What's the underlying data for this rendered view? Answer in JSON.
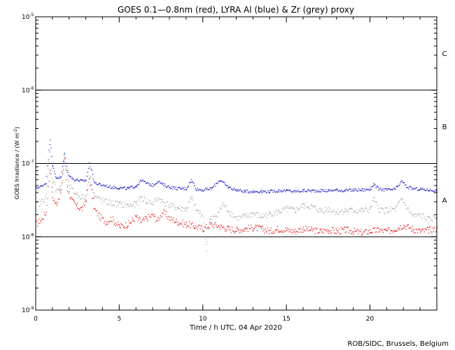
{
  "chart_data": {
    "type": "scatter",
    "title": "GOES 0.1—0.8nm (red), LYRA Al (blue) & Zr (grey) proxy",
    "xlabel": "Time / h UTC, 04 Apr 2020",
    "ylabel_main": "GOES Irradiance / (W m",
    "ylabel_exp": "-2",
    "ylabel_close": ")",
    "credit": "ROB/SIDC, Brussels, Belgium",
    "xlim": [
      0,
      24
    ],
    "ylim": [
      1e-09,
      1e-05
    ],
    "yscale": "log",
    "x_ticks": [
      {
        "value": 0,
        "label": "0"
      },
      {
        "value": 5,
        "label": "5"
      },
      {
        "value": 10,
        "label": "10"
      },
      {
        "value": 15,
        "label": "15"
      },
      {
        "value": 20,
        "label": "20"
      }
    ],
    "y_ticks": [
      {
        "value": 1e-09,
        "base": "10",
        "exp": "-9"
      },
      {
        "value": 1e-08,
        "base": "10",
        "exp": "-8"
      },
      {
        "value": 1e-07,
        "base": "10",
        "exp": "-7"
      },
      {
        "value": 1e-06,
        "base": "10",
        "exp": "-6"
      },
      {
        "value": 1e-05,
        "base": "10",
        "exp": "-5"
      }
    ],
    "class_lines": [
      1e-08,
      1e-07,
      1e-06
    ],
    "class_labels": [
      {
        "label": "A",
        "value": 3.2e-08
      },
      {
        "label": "B",
        "value": 3.2e-07
      },
      {
        "label": "C",
        "value": 3.2e-06
      }
    ],
    "series": [
      {
        "name": "GOES 0.1—0.8nm",
        "color": "#e00000",
        "points": [
          [
            0.0,
            1.5e-08
          ],
          [
            0.3,
            1.7e-08
          ],
          [
            0.6,
            2.2e-08
          ],
          [
            0.85,
            9e-08
          ],
          [
            1.0,
            3.5e-08
          ],
          [
            1.2,
            2.8e-08
          ],
          [
            1.5,
            4.3e-08
          ],
          [
            1.7,
            1.2e-07
          ],
          [
            1.9,
            4.5e-08
          ],
          [
            2.2,
            3e-08
          ],
          [
            2.5,
            2.6e-08
          ],
          [
            2.8,
            2.4e-08
          ],
          [
            3.0,
            3.4e-08
          ],
          [
            3.2,
            6.5e-08
          ],
          [
            3.5,
            2.4e-08
          ],
          [
            3.8,
            1.9e-08
          ],
          [
            4.2,
            1.6e-08
          ],
          [
            4.5,
            1.8e-08
          ],
          [
            5.0,
            1.4e-08
          ],
          [
            5.5,
            1.5e-08
          ],
          [
            5.8,
            1.7e-08
          ],
          [
            6.0,
            1.9e-08
          ],
          [
            6.3,
            1.6e-08
          ],
          [
            6.6,
            1.8e-08
          ],
          [
            7.0,
            2e-08
          ],
          [
            7.3,
            1.7e-08
          ],
          [
            7.6,
            2.2e-08
          ],
          [
            8.0,
            1.8e-08
          ],
          [
            8.5,
            1.6e-08
          ],
          [
            9.0,
            1.5e-08
          ],
          [
            9.5,
            1.4e-08
          ],
          [
            10.0,
            1.3e-08
          ],
          [
            10.5,
            1.5e-08
          ],
          [
            11.0,
            1.4e-08
          ],
          [
            11.5,
            1.3e-08
          ],
          [
            12.0,
            1.25e-08
          ],
          [
            12.5,
            1.3e-08
          ],
          [
            13.0,
            1.35e-08
          ],
          [
            13.5,
            1.3e-08
          ],
          [
            14.0,
            1.2e-08
          ],
          [
            14.5,
            1.3e-08
          ],
          [
            15.0,
            1.25e-08
          ],
          [
            15.5,
            1.2e-08
          ],
          [
            16.0,
            1.3e-08
          ],
          [
            16.5,
            1.25e-08
          ],
          [
            17.0,
            1.2e-08
          ],
          [
            17.5,
            1.25e-08
          ],
          [
            18.0,
            1.2e-08
          ],
          [
            18.5,
            1.25e-08
          ],
          [
            19.0,
            1.2e-08
          ],
          [
            19.5,
            1.15e-08
          ],
          [
            20.0,
            1.2e-08
          ],
          [
            20.5,
            1.25e-08
          ],
          [
            21.0,
            1.2e-08
          ],
          [
            21.5,
            1.3e-08
          ],
          [
            22.0,
            1.45e-08
          ],
          [
            22.5,
            1.3e-08
          ],
          [
            23.0,
            1.2e-08
          ],
          [
            23.5,
            1.25e-08
          ],
          [
            24.0,
            1.3e-08
          ]
        ]
      },
      {
        "name": "LYRA Al",
        "color": "#0000c8",
        "points": [
          [
            0.0,
            4.7e-08
          ],
          [
            0.3,
            4.9e-08
          ],
          [
            0.6,
            5.5e-08
          ],
          [
            0.85,
            2.2e-07
          ],
          [
            1.0,
            9e-08
          ],
          [
            1.2,
            6.5e-08
          ],
          [
            1.5,
            6.5e-08
          ],
          [
            1.7,
            1.4e-07
          ],
          [
            1.9,
            7.5e-08
          ],
          [
            2.2,
            6.2e-08
          ],
          [
            2.5,
            6e-08
          ],
          [
            2.8,
            5.8e-08
          ],
          [
            3.0,
            6e-08
          ],
          [
            3.2,
            1.05e-07
          ],
          [
            3.5,
            5.5e-08
          ],
          [
            3.8,
            5.2e-08
          ],
          [
            4.2,
            5e-08
          ],
          [
            4.5,
            4.8e-08
          ],
          [
            5.0,
            4.7e-08
          ],
          [
            5.5,
            4.6e-08
          ],
          [
            6.0,
            5e-08
          ],
          [
            6.3,
            6e-08
          ],
          [
            6.6,
            5.4e-08
          ],
          [
            7.0,
            5.1e-08
          ],
          [
            7.3,
            5.8e-08
          ],
          [
            7.6,
            5.2e-08
          ],
          [
            8.0,
            4.8e-08
          ],
          [
            8.5,
            4.6e-08
          ],
          [
            9.0,
            4.6e-08
          ],
          [
            9.3,
            6e-08
          ],
          [
            9.6,
            4.5e-08
          ],
          [
            10.0,
            4.4e-08
          ],
          [
            10.5,
            4.6e-08
          ],
          [
            11.0,
            6e-08
          ],
          [
            11.5,
            4.8e-08
          ],
          [
            12.0,
            4.4e-08
          ],
          [
            12.5,
            4.2e-08
          ],
          [
            13.0,
            4.2e-08
          ],
          [
            13.5,
            4.2e-08
          ],
          [
            14.0,
            4.2e-08
          ],
          [
            14.5,
            4.3e-08
          ],
          [
            15.0,
            4.3e-08
          ],
          [
            15.5,
            4.2e-08
          ],
          [
            16.0,
            4.3e-08
          ],
          [
            16.5,
            4.3e-08
          ],
          [
            17.0,
            4.3e-08
          ],
          [
            17.5,
            4.3e-08
          ],
          [
            18.0,
            4.4e-08
          ],
          [
            18.5,
            4.3e-08
          ],
          [
            19.0,
            4.4e-08
          ],
          [
            19.5,
            4.4e-08
          ],
          [
            20.0,
            4.5e-08
          ],
          [
            20.2,
            5.3e-08
          ],
          [
            20.5,
            4.5e-08
          ],
          [
            21.0,
            4.4e-08
          ],
          [
            21.5,
            4.5e-08
          ],
          [
            21.9,
            5.8e-08
          ],
          [
            22.2,
            4.8e-08
          ],
          [
            22.5,
            4.6e-08
          ],
          [
            23.0,
            4.5e-08
          ],
          [
            23.5,
            4.4e-08
          ],
          [
            24.0,
            4.3e-08
          ]
        ]
      },
      {
        "name": "LYRA Zr",
        "color": "#a0a0a0",
        "points": [
          [
            0.0,
            2.8e-08
          ],
          [
            0.3,
            3e-08
          ],
          [
            0.6,
            3.6e-08
          ],
          [
            0.85,
            1.6e-07
          ],
          [
            1.0,
            6e-08
          ],
          [
            1.2,
            4.5e-08
          ],
          [
            1.5,
            4.7e-08
          ],
          [
            1.7,
            1.3e-07
          ],
          [
            1.9,
            5.5e-08
          ],
          [
            2.2,
            4.2e-08
          ],
          [
            2.5,
            3.8e-08
          ],
          [
            2.8,
            3.4e-08
          ],
          [
            3.0,
            3.6e-08
          ],
          [
            3.2,
            8e-08
          ],
          [
            3.5,
            3.6e-08
          ],
          [
            3.8,
            3.3e-08
          ],
          [
            4.2,
            3e-08
          ],
          [
            4.5,
            2.9e-08
          ],
          [
            5.0,
            2.8e-08
          ],
          [
            5.5,
            2.7e-08
          ],
          [
            6.0,
            2.8e-08
          ],
          [
            6.3,
            3.5e-08
          ],
          [
            6.6,
            3.1e-08
          ],
          [
            7.0,
            2.9e-08
          ],
          [
            7.3,
            3.4e-08
          ],
          [
            7.6,
            3e-08
          ],
          [
            8.0,
            2.7e-08
          ],
          [
            8.5,
            2.5e-08
          ],
          [
            9.0,
            2.4e-08
          ],
          [
            9.3,
            3.4e-08
          ],
          [
            9.6,
            2.3e-08
          ],
          [
            10.0,
            2e-08
          ],
          [
            10.2,
            7e-09
          ],
          [
            10.4,
            1.7e-08
          ],
          [
            10.8,
            2e-08
          ],
          [
            11.2,
            2.8e-08
          ],
          [
            11.6,
            2.2e-08
          ],
          [
            12.0,
            1.8e-08
          ],
          [
            12.5,
            1.9e-08
          ],
          [
            13.0,
            2.1e-08
          ],
          [
            13.5,
            1.9e-08
          ],
          [
            14.0,
            2.1e-08
          ],
          [
            14.5,
            2.2e-08
          ],
          [
            15.0,
            2.4e-08
          ],
          [
            15.5,
            2.3e-08
          ],
          [
            16.0,
            2.7e-08
          ],
          [
            16.5,
            2.6e-08
          ],
          [
            17.0,
            2.3e-08
          ],
          [
            17.5,
            2.4e-08
          ],
          [
            18.0,
            2.2e-08
          ],
          [
            18.5,
            2.3e-08
          ],
          [
            19.0,
            2.3e-08
          ],
          [
            19.5,
            2.3e-08
          ],
          [
            20.0,
            2.4e-08
          ],
          [
            20.2,
            3.3e-08
          ],
          [
            20.5,
            2.4e-08
          ],
          [
            21.0,
            2.3e-08
          ],
          [
            21.5,
            2.4e-08
          ],
          [
            21.9,
            3.3e-08
          ],
          [
            22.3,
            2.3e-08
          ],
          [
            22.6,
            1.9e-08
          ],
          [
            23.0,
            2e-08
          ],
          [
            23.5,
            1.7e-08
          ],
          [
            24.0,
            1.9e-08
          ]
        ]
      }
    ]
  }
}
